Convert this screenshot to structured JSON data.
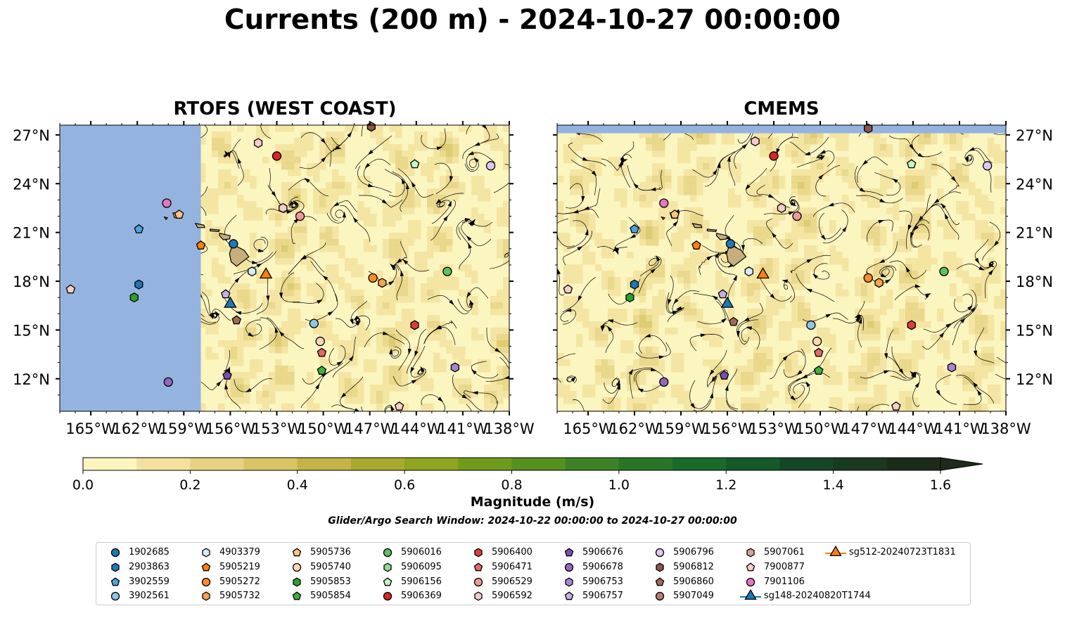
{
  "title": "Currents (200 m) - 2024-10-27 00:00:00",
  "panels": [
    {
      "title": "RTOFS (WEST COAST)"
    },
    {
      "title": "CMEMS"
    }
  ],
  "lon_ticks": [
    "165°W",
    "162°W",
    "159°W",
    "156°W",
    "153°W",
    "150°W",
    "147°W",
    "144°W",
    "141°W",
    "138°W"
  ],
  "lat_ticks": [
    "27°N",
    "24°N",
    "21°N",
    "18°N",
    "15°N",
    "12°N"
  ],
  "colors": {
    "land": "#c8ad7f",
    "masked_water": "#95b3df",
    "ocean_low": "#fbf5c0"
  },
  "colorbar": {
    "label": "Magnitude (m/s)",
    "ticks": [
      "0.0",
      "0.2",
      "0.4",
      "0.6",
      "0.8",
      "1.0",
      "1.2",
      "1.4",
      "1.6"
    ],
    "min": 0.0,
    "max": 1.6,
    "step": 0.1,
    "extend": "max",
    "colors": [
      "#fcf5c0",
      "#f2e29e",
      "#e6d283",
      "#d8c465",
      "#c4b447",
      "#aaa92f",
      "#8da51f",
      "#6e9b1c",
      "#56901f",
      "#3d8226",
      "#2a7428",
      "#1a6a2a",
      "#14592a",
      "#174626",
      "#1b3820",
      "#1d2c1a"
    ]
  },
  "search_window": "Glider/Argo Search Window: 2024-10-22 00:00:00 to 2024-10-27 00:00:00",
  "legend": [
    {
      "label": "1902685",
      "color": "#1f77b4",
      "shape": "circle"
    },
    {
      "label": "2903863",
      "color": "#1f77b4",
      "shape": "hexagon"
    },
    {
      "label": "3902559",
      "color": "#4ea3dc",
      "shape": "pentagon"
    },
    {
      "label": "3902561",
      "color": "#8fc6e8",
      "shape": "circle"
    },
    {
      "label": "4903379",
      "color": "#d7ecf7",
      "shape": "hexagon"
    },
    {
      "label": "5905219",
      "color": "#ff7f0e",
      "shape": "pentagon"
    },
    {
      "label": "5905272",
      "color": "#ff8c2e",
      "shape": "circle"
    },
    {
      "label": "5905732",
      "color": "#ffa24f",
      "shape": "hexagon"
    },
    {
      "label": "5905736",
      "color": "#ffc287",
      "shape": "pentagon"
    },
    {
      "label": "5905740",
      "color": "#ffd8b3",
      "shape": "circle"
    },
    {
      "label": "5905853",
      "color": "#2ca02c",
      "shape": "hexagon"
    },
    {
      "label": "5905854",
      "color": "#3cb23c",
      "shape": "pentagon"
    },
    {
      "label": "5906016",
      "color": "#5dc15d",
      "shape": "circle"
    },
    {
      "label": "5906095",
      "color": "#8fdc8f",
      "shape": "hexagon"
    },
    {
      "label": "5906156",
      "color": "#c5f5c5",
      "shape": "pentagon"
    },
    {
      "label": "5906369",
      "color": "#d62728",
      "shape": "circle"
    },
    {
      "label": "5906400",
      "color": "#dc3d3d",
      "shape": "hexagon"
    },
    {
      "label": "5906471",
      "color": "#e46868",
      "shape": "pentagon"
    },
    {
      "label": "5906529",
      "color": "#ef9a9a",
      "shape": "circle"
    },
    {
      "label": "5906592",
      "color": "#f7cbcb",
      "shape": "hexagon"
    },
    {
      "label": "5906676",
      "color": "#7b4fb0",
      "shape": "pentagon"
    },
    {
      "label": "5906678",
      "color": "#9467bd",
      "shape": "circle"
    },
    {
      "label": "5906753",
      "color": "#a984d2",
      "shape": "hexagon"
    },
    {
      "label": "5906757",
      "color": "#c6aee6",
      "shape": "pentagon"
    },
    {
      "label": "5906796",
      "color": "#e1c6f2",
      "shape": "circle"
    },
    {
      "label": "5906812",
      "color": "#8c564b",
      "shape": "hexagon"
    },
    {
      "label": "5906860",
      "color": "#a06a5c",
      "shape": "pentagon"
    },
    {
      "label": "5907049",
      "color": "#b87e6e",
      "shape": "circle"
    },
    {
      "label": "5907061",
      "color": "#d3a494",
      "shape": "hexagon"
    },
    {
      "label": "7900877",
      "color": "#f5d0c6",
      "shape": "pentagon"
    },
    {
      "label": "7901106",
      "color": "#e377c2",
      "shape": "circle"
    },
    {
      "label": "sg148-20240820T1744",
      "color": "#1f77b4",
      "shape": "triangle"
    },
    {
      "label": "sg512-20240723T1831",
      "color": "#ff7f0e",
      "shape": "triangle"
    }
  ],
  "map": {
    "lon_range": [
      -167,
      -138
    ],
    "lat_range": [
      10,
      27.6
    ],
    "rtofs_data_west_lon": -157.9,
    "cmems_data_north_lat": 27.1,
    "islands": [
      {
        "name": "Hawaii",
        "outline": [
          [
            -155.85,
            20.27
          ],
          [
            -155.1,
            19.9
          ],
          [
            -154.8,
            19.5
          ],
          [
            -155.6,
            18.92
          ],
          [
            -155.95,
            19.2
          ],
          [
            -156.05,
            19.7
          ]
        ]
      },
      {
        "name": "Maui",
        "outline": [
          [
            -156.7,
            20.95
          ],
          [
            -156.0,
            20.8
          ],
          [
            -156.05,
            20.6
          ],
          [
            -156.45,
            20.55
          ],
          [
            -156.7,
            20.8
          ]
        ]
      },
      {
        "name": "Molokai",
        "outline": [
          [
            -157.3,
            21.2
          ],
          [
            -156.7,
            21.15
          ],
          [
            -156.75,
            21.05
          ],
          [
            -157.3,
            21.1
          ]
        ]
      },
      {
        "name": "Oahu",
        "outline": [
          [
            -158.25,
            21.55
          ],
          [
            -157.7,
            21.45
          ],
          [
            -157.65,
            21.3
          ],
          [
            -158.1,
            21.3
          ]
        ]
      },
      {
        "name": "Kauai",
        "outline": [
          [
            -159.7,
            22.2
          ],
          [
            -159.3,
            22.2
          ],
          [
            -159.3,
            21.9
          ],
          [
            -159.6,
            21.9
          ]
        ]
      },
      {
        "name": "Niihau",
        "outline": [
          [
            -160.25,
            21.95
          ],
          [
            -160.05,
            21.9
          ],
          [
            -160.15,
            21.8
          ]
        ]
      }
    ],
    "rtofs_markers": [
      {
        "lon": -155.8,
        "lat": 20.3,
        "series": "1902685"
      },
      {
        "lon": -161.9,
        "lat": 17.8,
        "series": "2903863"
      },
      {
        "lon": -161.9,
        "lat": 21.2,
        "series": "3902559"
      },
      {
        "lon": -150.6,
        "lat": 15.4,
        "series": "3902561"
      },
      {
        "lon": -154.6,
        "lat": 18.6,
        "series": "4903379"
      },
      {
        "lon": -157.9,
        "lat": 20.2,
        "series": "5905219"
      },
      {
        "lon": -146.8,
        "lat": 18.2,
        "series": "5905272"
      },
      {
        "lon": -146.2,
        "lat": 17.9,
        "series": "5905732"
      },
      {
        "lon": -159.3,
        "lat": 22.1,
        "series": "5905736"
      },
      {
        "lon": -150.2,
        "lat": 14.3,
        "series": "5905740"
      },
      {
        "lon": -162.2,
        "lat": 17.0,
        "series": "5905853"
      },
      {
        "lon": -150.1,
        "lat": 12.5,
        "series": "5905854"
      },
      {
        "lon": -142.0,
        "lat": 18.6,
        "series": "5906016"
      },
      {
        "lon": -144.1,
        "lat": 25.2,
        "series": "5906156"
      },
      {
        "lon": -153.0,
        "lat": 25.7,
        "series": "5906369"
      },
      {
        "lon": -144.1,
        "lat": 15.3,
        "series": "5906400"
      },
      {
        "lon": -150.1,
        "lat": 13.6,
        "series": "5906471"
      },
      {
        "lon": -151.5,
        "lat": 22.0,
        "series": "5906529"
      },
      {
        "lon": -152.6,
        "lat": 22.5,
        "series": "5906592"
      },
      {
        "lon": -156.2,
        "lat": 12.2,
        "series": "5906676"
      },
      {
        "lon": -141.5,
        "lat": 12.7,
        "series": "5906753"
      },
      {
        "lon": -156.3,
        "lat": 17.2,
        "series": "5906757"
      },
      {
        "lon": -139.2,
        "lat": 25.1,
        "series": "5906796"
      },
      {
        "lon": -146.9,
        "lat": 27.5,
        "series": "5906812"
      },
      {
        "lon": -155.6,
        "lat": 15.6,
        "series": "5906860"
      },
      {
        "lon": -154.2,
        "lat": 26.5,
        "series": "5906592"
      },
      {
        "lon": -145.1,
        "lat": 10.3,
        "series": "7900877"
      },
      {
        "lon": -166.3,
        "lat": 17.5,
        "series": "7900877"
      },
      {
        "lon": -160.1,
        "lat": 22.8,
        "series": "7901106"
      },
      {
        "lon": -160.0,
        "lat": 11.8,
        "series": "5906678"
      },
      {
        "lon": -156.0,
        "lat": 16.6,
        "series": "sg148-20240820T1744"
      },
      {
        "lon": -153.7,
        "lat": 18.4,
        "series": "sg512-20240723T1831"
      }
    ],
    "cmems_markers": [
      {
        "lon": -155.8,
        "lat": 20.3,
        "series": "1902685"
      },
      {
        "lon": -162.0,
        "lat": 17.8,
        "series": "2903863"
      },
      {
        "lon": -162.0,
        "lat": 21.2,
        "series": "3902559"
      },
      {
        "lon": -150.6,
        "lat": 15.3,
        "series": "3902561"
      },
      {
        "lon": -154.6,
        "lat": 18.6,
        "series": "4903379"
      },
      {
        "lon": -158.0,
        "lat": 20.2,
        "series": "5905219"
      },
      {
        "lon": -146.9,
        "lat": 18.2,
        "series": "5905272"
      },
      {
        "lon": -146.2,
        "lat": 17.9,
        "series": "5905732"
      },
      {
        "lon": -159.4,
        "lat": 22.1,
        "series": "5905736"
      },
      {
        "lon": -150.2,
        "lat": 14.3,
        "series": "5905740"
      },
      {
        "lon": -162.3,
        "lat": 17.0,
        "series": "5905853"
      },
      {
        "lon": -150.1,
        "lat": 12.5,
        "series": "5905854"
      },
      {
        "lon": -142.0,
        "lat": 18.6,
        "series": "5906016"
      },
      {
        "lon": -144.1,
        "lat": 25.2,
        "series": "5906156"
      },
      {
        "lon": -153.0,
        "lat": 25.7,
        "series": "5906369"
      },
      {
        "lon": -144.1,
        "lat": 15.3,
        "series": "5906400"
      },
      {
        "lon": -150.1,
        "lat": 13.6,
        "series": "5906471"
      },
      {
        "lon": -151.5,
        "lat": 22.0,
        "series": "5906529"
      },
      {
        "lon": -152.5,
        "lat": 22.5,
        "series": "5906592"
      },
      {
        "lon": -156.2,
        "lat": 12.2,
        "series": "5906676"
      },
      {
        "lon": -141.5,
        "lat": 12.7,
        "series": "5906753"
      },
      {
        "lon": -156.3,
        "lat": 17.2,
        "series": "5906757"
      },
      {
        "lon": -139.2,
        "lat": 25.1,
        "series": "5906796"
      },
      {
        "lon": -146.9,
        "lat": 27.4,
        "series": "5906812"
      },
      {
        "lon": -155.6,
        "lat": 15.5,
        "series": "5906860"
      },
      {
        "lon": -154.2,
        "lat": 26.6,
        "series": "5906592"
      },
      {
        "lon": -145.1,
        "lat": 10.3,
        "series": "7900877"
      },
      {
        "lon": -166.3,
        "lat": 17.5,
        "series": "7900877"
      },
      {
        "lon": -160.1,
        "lat": 22.8,
        "series": "7901106"
      },
      {
        "lon": -160.1,
        "lat": 11.8,
        "series": "5906678"
      },
      {
        "lon": -156.0,
        "lat": 16.6,
        "series": "sg148-20240820T1744"
      },
      {
        "lon": -153.7,
        "lat": 18.4,
        "series": "sg512-20240723T1831"
      }
    ]
  }
}
